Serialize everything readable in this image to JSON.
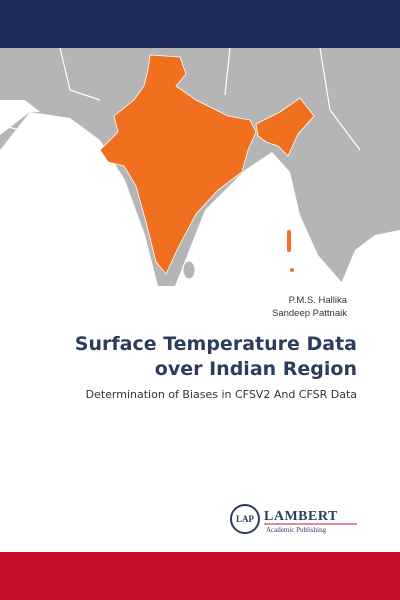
{
  "authors": [
    "P.M.S. Hallika",
    "Sandeep Pattnaik"
  ],
  "title_lines": [
    "Surface Temperature Data",
    "over Indian Region"
  ],
  "subtitle": "Determination of Biases in CFSV2 And CFSR Data",
  "publisher": {
    "mark": "LAP",
    "name": "LAMBERT",
    "tagline": "Academic Publishing"
  }
}
